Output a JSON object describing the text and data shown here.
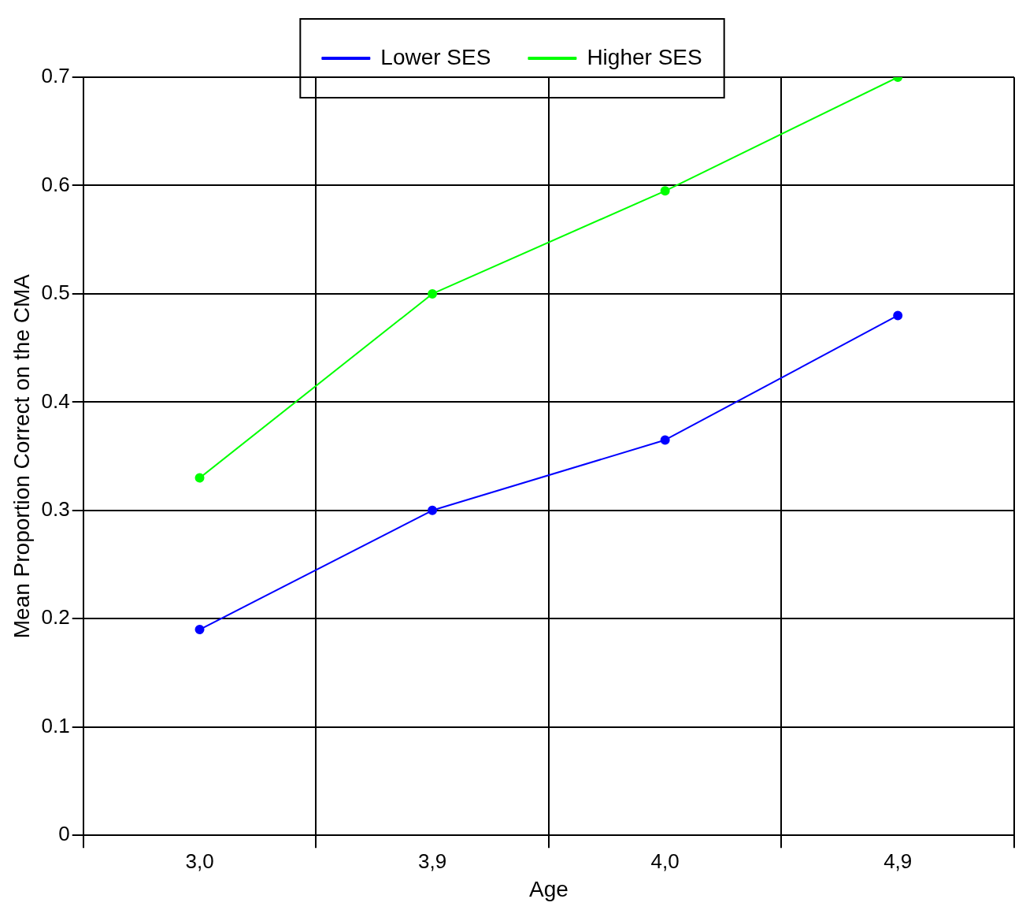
{
  "chart_data": {
    "type": "line",
    "xlabel": "Age",
    "ylabel": "Mean Proportion Correct on the CMA",
    "categories": [
      "3,0",
      "3,9",
      "4,0",
      "4,9"
    ],
    "series": [
      {
        "name": "Lower SES",
        "color": "#0000ff",
        "values": [
          0.19,
          0.3,
          0.365,
          0.48
        ]
      },
      {
        "name": "Higher SES",
        "color": "#00ff00",
        "values": [
          0.33,
          0.5,
          0.595,
          0.7
        ]
      }
    ],
    "ylim": [
      0,
      0.7
    ],
    "yticks": [
      0,
      0.1,
      0.2,
      0.3,
      0.4,
      0.5,
      0.6,
      0.7
    ],
    "grid": true,
    "legend": "top",
    "marker": "circle",
    "line_style": "solid"
  }
}
